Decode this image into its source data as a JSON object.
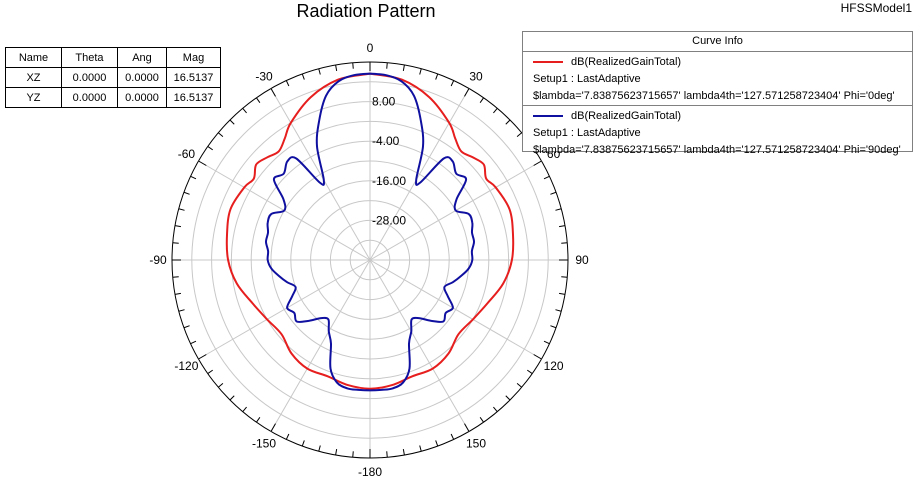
{
  "title": "Radiation Pattern",
  "model": "HFSSModel1",
  "markers_table": {
    "headers": [
      "Name",
      "Theta",
      "Ang",
      "Mag"
    ],
    "rows": [
      [
        "XZ",
        "0.0000",
        "0.0000",
        "16.5137"
      ],
      [
        "YZ",
        "0.0000",
        "0.0000",
        "16.5137"
      ]
    ]
  },
  "legend": {
    "title": "Curve Info",
    "entries": [
      {
        "name": "dB(RealizedGainTotal)",
        "setup": "Setup1 : LastAdaptive",
        "params": "$lambda='7.83875623715657' lambda4th='127.571258723404' Phi='0deg'",
        "color": "#e61e1e"
      },
      {
        "name": "dB(RealizedGainTotal)",
        "setup": "Setup1 : LastAdaptive",
        "params": "$lambda='7.83875623715657' lambda4th='127.571258723404' Phi='90deg'",
        "color": "#1010a0"
      }
    ]
  },
  "chart_data": {
    "type": "polar",
    "title": "Radiation Pattern",
    "angle_unit": "deg",
    "angle_ticks": [
      -180,
      -150,
      -120,
      -90,
      -60,
      -30,
      0,
      30,
      60,
      90,
      120,
      150
    ],
    "angle_labels": [
      "-180",
      "-150",
      "-120",
      "-90",
      "-60",
      "-30",
      "0",
      "30",
      "60",
      "90",
      "120",
      "150"
    ],
    "r_ticks": [
      -28,
      -16,
      -4,
      8
    ],
    "r_labels": [
      "-28.00",
      "-16.00",
      "-4.00",
      "8.00"
    ],
    "r_range": [
      -40,
      20
    ],
    "grid": true,
    "series": [
      {
        "name": "dB(RealizedGainTotal) Phi='0deg'",
        "color": "#e61e1e",
        "theta": [
          0,
          10,
          20,
          30,
          35,
          40,
          45,
          50,
          55,
          60,
          70,
          80,
          90,
          100,
          110,
          120,
          130,
          140,
          150,
          160,
          170,
          180
        ],
        "values": [
          16.5,
          15.5,
          12.5,
          8.0,
          5.0,
          3.0,
          4.0,
          5.0,
          3.0,
          4.0,
          5.0,
          4.0,
          3.0,
          1.0,
          -2.0,
          -4.0,
          -5.0,
          -3.0,
          -2.0,
          -2.5,
          -1.5,
          -1.0
        ]
      },
      {
        "name": "dB(RealizedGainTotal) Phi='90deg'",
        "color": "#1010a0",
        "theta": [
          0,
          5,
          10,
          15,
          20,
          25,
          30,
          33,
          36,
          40,
          45,
          50,
          55,
          60,
          65,
          70,
          75,
          80,
          85,
          90,
          95,
          100,
          105,
          110,
          115,
          120,
          125,
          130,
          135,
          140,
          145,
          150,
          155,
          160,
          165,
          170,
          175,
          180
        ],
        "values": [
          16.5,
          16.2,
          15.0,
          11.5,
          5.0,
          -2.0,
          -12.0,
          -12.0,
          -2.0,
          -1.0,
          -3.0,
          -2.0,
          -8.0,
          -10.0,
          -7.0,
          -7.0,
          -8.0,
          -8.0,
          -9.0,
          -9.0,
          -10.0,
          -12.0,
          -14.0,
          -16.0,
          -14.0,
          -11.0,
          -12.0,
          -11.0,
          -14.0,
          -17.0,
          -18.0,
          -15.0,
          -12.0,
          -5.0,
          -1.5,
          -0.5,
          -0.5,
          -0.5
        ]
      }
    ]
  }
}
